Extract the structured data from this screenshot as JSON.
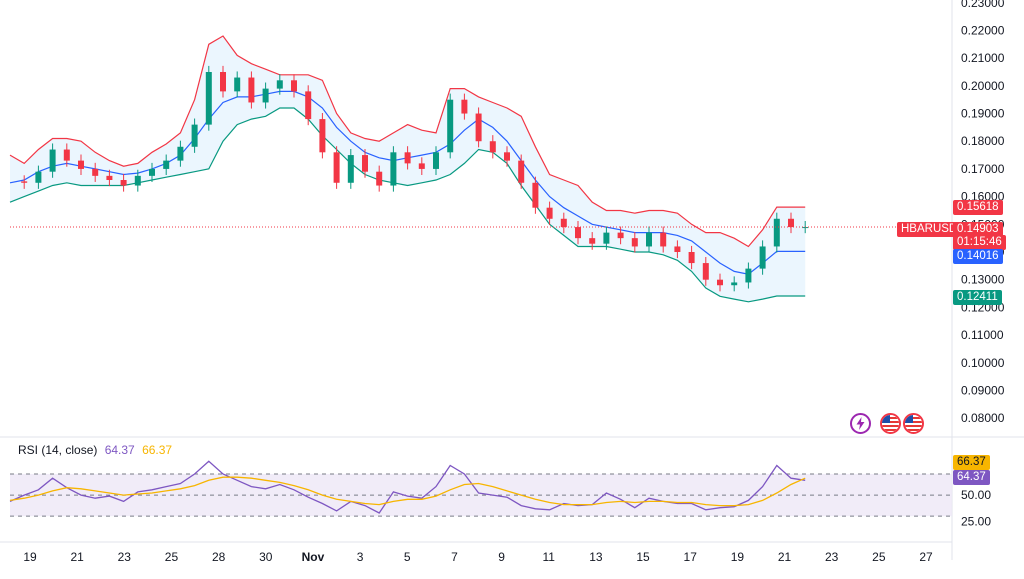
{
  "chart_data": {
    "type": "line",
    "symbol": "HBARUSD",
    "price_axis": {
      "ticks": [
        "0.23000",
        "0.22000",
        "0.21000",
        "0.20000",
        "0.19000",
        "0.18000",
        "0.17000",
        "0.16000",
        "0.15000",
        "0.14000",
        "0.13000",
        "0.12000",
        "0.11000",
        "0.10000",
        "0.09000",
        "0.08000"
      ],
      "range": [
        0.075,
        0.231
      ]
    },
    "x_axis": {
      "ticks": [
        "19",
        "21",
        "23",
        "25",
        "28",
        "30",
        "Nov",
        "3",
        "5",
        "7",
        "9",
        "11",
        "13",
        "15",
        "17",
        "19",
        "21",
        "23",
        "25",
        "27"
      ]
    },
    "price_labels": {
      "upper_band": "0.15618",
      "last_price": "0.14903",
      "countdown": "01:15:46",
      "basis": "0.14016",
      "lower_band": "0.12411"
    },
    "series": [
      {
        "name": "HBARUSD",
        "color": "#f23645",
        "x": [
          0,
          1,
          2,
          3,
          4,
          5,
          6,
          7,
          8,
          9,
          10,
          11,
          12,
          13,
          14,
          15,
          16,
          17,
          18,
          19,
          20,
          21,
          22,
          23,
          24,
          25,
          26,
          27,
          28,
          29,
          30,
          31,
          32,
          33,
          34,
          35,
          36,
          37,
          38,
          39,
          40,
          41,
          42,
          43,
          44,
          45,
          46,
          47,
          48,
          49,
          50,
          51,
          52,
          53,
          54,
          55,
          56,
          57,
          58,
          59,
          60
        ],
        "values": [
          0.1655,
          0.165,
          0.169,
          0.177,
          0.173,
          0.17,
          0.1675,
          0.166,
          0.164,
          0.1675,
          0.17,
          0.173,
          0.178,
          0.186,
          0.205,
          0.198,
          0.203,
          0.194,
          0.199,
          0.202,
          0.198,
          0.188,
          0.176,
          0.165,
          0.175,
          0.169,
          0.164,
          0.176,
          0.172,
          0.17,
          0.176,
          0.195,
          0.19,
          0.18,
          0.176,
          0.173,
          0.165,
          0.156,
          0.152,
          0.149,
          0.145,
          0.143,
          0.147,
          0.145,
          0.142,
          0.147,
          0.142,
          0.14,
          0.136,
          0.13,
          0.128,
          0.129,
          0.134,
          0.142,
          0.152,
          0.149,
          0.149,
          0.149,
          0.149,
          0.149,
          0.149
        ]
      },
      {
        "name": "Upper Band",
        "color": "#f23645",
        "values": [
          0.175,
          0.172,
          0.177,
          0.181,
          0.181,
          0.18,
          0.176,
          0.173,
          0.171,
          0.172,
          0.176,
          0.179,
          0.183,
          0.195,
          0.215,
          0.218,
          0.211,
          0.208,
          0.206,
          0.204,
          0.204,
          0.204,
          0.202,
          0.19,
          0.183,
          0.181,
          0.18,
          0.183,
          0.186,
          0.184,
          0.183,
          0.199,
          0.199,
          0.196,
          0.194,
          0.192,
          0.189,
          0.178,
          0.168,
          0.166,
          0.164,
          0.158,
          0.155,
          0.155,
          0.154,
          0.155,
          0.155,
          0.154,
          0.15,
          0.147,
          0.147,
          0.145,
          0.142,
          0.148,
          0.1562,
          0.1562,
          0.1562,
          0.1562,
          0.1562,
          0.1562,
          0.1562
        ]
      },
      {
        "name": "Basis",
        "color": "#2962ff",
        "values": [
          0.165,
          0.166,
          0.169,
          0.171,
          0.172,
          0.171,
          0.17,
          0.169,
          0.168,
          0.1685,
          0.17,
          0.172,
          0.175,
          0.181,
          0.188,
          0.194,
          0.196,
          0.196,
          0.197,
          0.198,
          0.198,
          0.196,
          0.192,
          0.185,
          0.18,
          0.176,
          0.174,
          0.173,
          0.174,
          0.175,
          0.176,
          0.179,
          0.184,
          0.188,
          0.185,
          0.18,
          0.173,
          0.166,
          0.16,
          0.156,
          0.153,
          0.15,
          0.149,
          0.148,
          0.147,
          0.147,
          0.147,
          0.146,
          0.144,
          0.14,
          0.136,
          0.133,
          0.132,
          0.136,
          0.1402,
          0.1402,
          0.1402,
          0.1402,
          0.1402,
          0.1402,
          0.1402
        ]
      },
      {
        "name": "Lower Band",
        "color": "#089981",
        "values": [
          0.158,
          0.16,
          0.162,
          0.164,
          0.165,
          0.164,
          0.164,
          0.164,
          0.164,
          0.165,
          0.166,
          0.167,
          0.168,
          0.169,
          0.17,
          0.18,
          0.186,
          0.188,
          0.189,
          0.192,
          0.192,
          0.188,
          0.182,
          0.177,
          0.172,
          0.168,
          0.166,
          0.165,
          0.164,
          0.165,
          0.166,
          0.168,
          0.172,
          0.177,
          0.176,
          0.172,
          0.164,
          0.157,
          0.15,
          0.146,
          0.142,
          0.142,
          0.142,
          0.141,
          0.14,
          0.14,
          0.139,
          0.137,
          0.133,
          0.127,
          0.124,
          0.123,
          0.122,
          0.123,
          0.1241,
          0.1241,
          0.1241,
          0.1241,
          0.1241,
          0.1241,
          0.1241
        ]
      }
    ],
    "rsi": {
      "legend": "RSI (14, close)",
      "value": "64.37",
      "ma_value": "66.37",
      "levels": [
        "70",
        "50",
        "30"
      ],
      "axis_ticks": [
        "50.00",
        "25.00"
      ],
      "labels": {
        "ma": "66.37",
        "rsi": "64.37"
      },
      "values": [
        44,
        50,
        55,
        66,
        57,
        50,
        47,
        49,
        44,
        53,
        55,
        58,
        61,
        70,
        82,
        70,
        64,
        58,
        56,
        60,
        55,
        48,
        42,
        35,
        44,
        40,
        33,
        53,
        49,
        47,
        58,
        78,
        70,
        52,
        50,
        48,
        40,
        37,
        36,
        42,
        40,
        41,
        52,
        46,
        38,
        47,
        44,
        42,
        42,
        36,
        38,
        39,
        45,
        58,
        78,
        66,
        64,
        64,
        64,
        64,
        64
      ],
      "ma_values": [
        45,
        47,
        50,
        54,
        57,
        56,
        54,
        52,
        50,
        51,
        52,
        54,
        56,
        59,
        64,
        67,
        67,
        66,
        64,
        62,
        59,
        55,
        50,
        46,
        44,
        42,
        41,
        44,
        46,
        46,
        49,
        55,
        60,
        61,
        58,
        54,
        50,
        46,
        43,
        41,
        41,
        41,
        43,
        44,
        43,
        44,
        44,
        43,
        43,
        41,
        40,
        40,
        41,
        45,
        52,
        60,
        66,
        66,
        66,
        66,
        66
      ],
      "range": [
        15,
        88
      ]
    }
  },
  "colors": {
    "up": "#089981",
    "down": "#f23645",
    "basis": "#2962ff",
    "rsi": "#7e57c2",
    "rsi_ma": "#f7b500",
    "band_fill": "#e3f2fd",
    "rsi_fill": "#ede7f6"
  },
  "icons": [
    "lightning-icon",
    "flag-us-icon",
    "flag-us-icon"
  ]
}
